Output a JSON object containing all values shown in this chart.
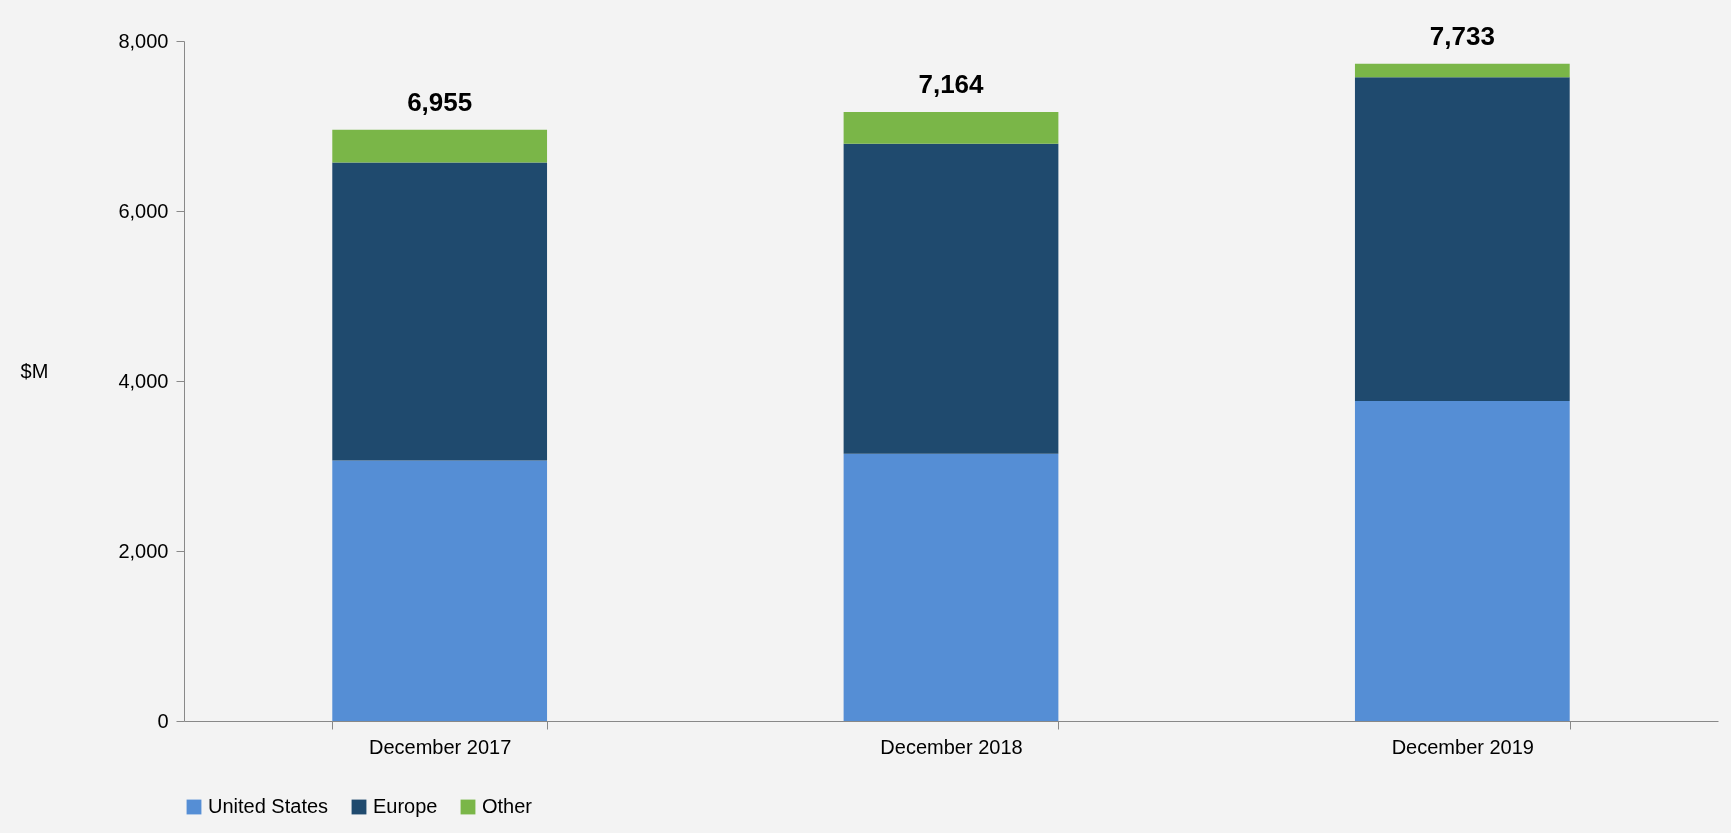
{
  "chart_data": {
    "type": "bar",
    "stacked": true,
    "ylabel": "$M",
    "categories": [
      "December 2017",
      "December 2018",
      "December 2019"
    ],
    "series": [
      {
        "name": "United States",
        "color": "#558ed5",
        "values": [
          3065,
          3143,
          3766
        ]
      },
      {
        "name": "Europe",
        "color": "#1f4a6e",
        "values": [
          3506,
          3649,
          3807
        ]
      },
      {
        "name": "Other",
        "color": "#7ab648",
        "values": [
          384,
          372,
          160
        ]
      }
    ],
    "totals": [
      "6,955",
      "7,164",
      "7,733"
    ],
    "ylim": [
      0,
      8000
    ],
    "yticks": [
      {
        "value": 0,
        "label": "0"
      },
      {
        "value": 2000,
        "label": "2,000"
      },
      {
        "value": 4000,
        "label": "4,000"
      },
      {
        "value": 6000,
        "label": "6,000"
      },
      {
        "value": 8000,
        "label": "8,000"
      }
    ],
    "grid": false,
    "legend": "bottom"
  }
}
